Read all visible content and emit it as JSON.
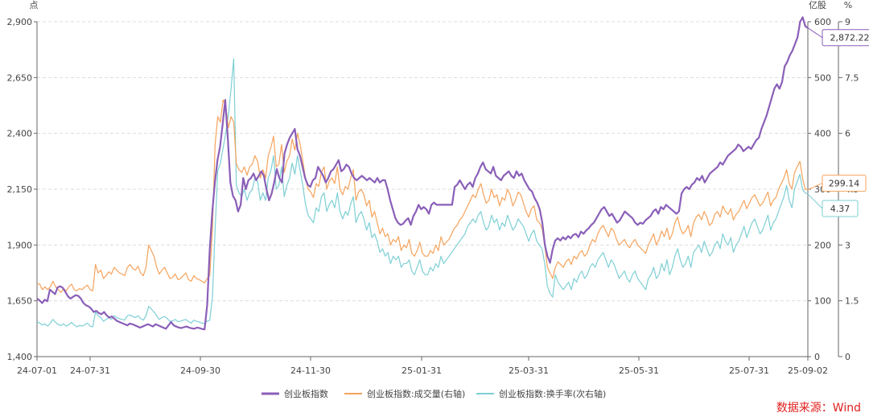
{
  "chart_data": {
    "type": "line",
    "left_unit": "点",
    "right_unit": "亿股",
    "right2_unit": "%",
    "x_labels": [
      "24-07-01",
      "24-07-31",
      "24-09-30",
      "24-11-30",
      "25-01-31",
      "25-03-31",
      "25-05-31",
      "25-07-31",
      "25-09-02"
    ],
    "y_left": {
      "min": 1400,
      "max": 2900,
      "ticks": [
        1400,
        1650,
        1900,
        2150,
        2400,
        2650,
        2900
      ],
      "tick_labels": [
        "1,400",
        "1,650",
        "1,900",
        "2,150",
        "2,400",
        "2,650",
        "2,900"
      ]
    },
    "y_right": {
      "min": 0,
      "max": 600,
      "ticks": [
        0,
        100,
        200,
        300,
        400,
        500,
        600
      ],
      "tick_labels": [
        "0",
        "100",
        "200",
        "300",
        "400",
        "500",
        "600"
      ]
    },
    "y_right2": {
      "min": 0,
      "max": 9,
      "ticks": [
        0,
        1.5,
        3,
        4.5,
        6,
        7.5,
        9
      ],
      "tick_labels": [
        "0",
        "1.5",
        "3",
        "4.5",
        "6",
        "7.5",
        "9"
      ]
    },
    "series": [
      {
        "name": "创业板指数",
        "axis": "left",
        "color": "#8a5fb8",
        "last_label": "2,872.22",
        "values": [
          1660,
          1652,
          1640,
          1655,
          1648,
          1700,
          1690,
          1680,
          1710,
          1715,
          1708,
          1690,
          1670,
          1660,
          1668,
          1675,
          1672,
          1660,
          1640,
          1630,
          1625,
          1615,
          1600,
          1605,
          1595,
          1590,
          1600,
          1585,
          1575,
          1580,
          1570,
          1560,
          1555,
          1550,
          1545,
          1540,
          1548,
          1545,
          1540,
          1535,
          1530,
          1535,
          1540,
          1545,
          1540,
          1535,
          1545,
          1540,
          1535,
          1530,
          1525,
          1540,
          1555,
          1540,
          1535,
          1530,
          1528,
          1532,
          1535,
          1530,
          1527,
          1525,
          1530,
          1528,
          1524,
          1522,
          1630,
          1880,
          2050,
          2180,
          2280,
          2340,
          2440,
          2550,
          2380,
          2180,
          2120,
          2100,
          2050,
          2080,
          2200,
          2150,
          2190,
          2200,
          2220,
          2190,
          2210,
          2230,
          2210,
          2150,
          2100,
          2130,
          2180,
          2240,
          2200,
          2180,
          2310,
          2350,
          2380,
          2400,
          2420,
          2330,
          2300,
          2250,
          2200,
          2170,
          2160,
          2190,
          2200,
          2250,
          2230,
          2210,
          2180,
          2200,
          2230,
          2240,
          2260,
          2280,
          2230,
          2240,
          2260,
          2250,
          2220,
          2200,
          2190,
          2200,
          2210,
          2200,
          2190,
          2200,
          2190,
          2180,
          2200,
          2180,
          2190,
          2190,
          2150,
          2100,
          2060,
          2020,
          2000,
          1990,
          1995,
          2010,
          2020,
          1990,
          2030,
          2050,
          2080,
          2060,
          2070,
          2060,
          2040,
          2080,
          2090,
          2080,
          2080,
          2080,
          2080,
          2080,
          2080,
          2080,
          2160,
          2170,
          2190,
          2170,
          2150,
          2170,
          2180,
          2160,
          2200,
          2220,
          2250,
          2270,
          2240,
          2230,
          2220,
          2250,
          2210,
          2200,
          2190,
          2210,
          2220,
          2230,
          2210,
          2200,
          2230,
          2210,
          2220,
          2190,
          2170,
          2150,
          2140,
          2110,
          2090,
          2060,
          2000,
          1900,
          1850,
          1820,
          1880,
          1920,
          1930,
          1920,
          1935,
          1925,
          1940,
          1930,
          1945,
          1950,
          1935,
          1960,
          1950,
          1965,
          1975,
          1990,
          2000,
          2020,
          2040,
          2060,
          2070,
          2050,
          2030,
          2040,
          2020,
          2000,
          2010,
          2030,
          2050,
          2040,
          2030,
          2020,
          2000,
          1990,
          2000,
          1995,
          2010,
          2020,
          2030,
          2050,
          2060,
          2040,
          2070,
          2060,
          2080,
          2070,
          2060,
          2050,
          2040,
          2050,
          2130,
          2150,
          2160,
          2150,
          2170,
          2180,
          2200,
          2190,
          2210,
          2180,
          2200,
          2220,
          2230,
          2240,
          2250,
          2270,
          2260,
          2280,
          2300,
          2310,
          2320,
          2330,
          2350,
          2340,
          2320,
          2330,
          2340,
          2330,
          2350,
          2370,
          2380,
          2420,
          2450,
          2480,
          2520,
          2560,
          2600,
          2620,
          2600,
          2630,
          2700,
          2720,
          2750,
          2770,
          2800,
          2830,
          2900,
          2920,
          2880,
          2872.22
        ]
      },
      {
        "name": "创业板指数:成交量(右轴)",
        "axis": "right",
        "color": "#f5a35c",
        "last_label": "299.14",
        "values": [
          130,
          130,
          120,
          125,
          120,
          125,
          135,
          125,
          120,
          115,
          122,
          118,
          125,
          130,
          120,
          118,
          122,
          120,
          125,
          128,
          120,
          118,
          165,
          150,
          155,
          140,
          145,
          152,
          148,
          160,
          155,
          150,
          148,
          145,
          160,
          165,
          158,
          155,
          162,
          150,
          145,
          160,
          200,
          190,
          180,
          160,
          148,
          155,
          160,
          150,
          140,
          142,
          148,
          138,
          140,
          145,
          150,
          138,
          135,
          145,
          140,
          138,
          135,
          132,
          140,
          145,
          230,
          380,
          430,
          420,
          460,
          450,
          410,
          430,
          420,
          345,
          335,
          330,
          340,
          325,
          340,
          345,
          360,
          350,
          320,
          335,
          320,
          360,
          375,
          395,
          340,
          345,
          380,
          330,
          350,
          360,
          390,
          370,
          400,
          380,
          350,
          320,
          300,
          295,
          285,
          310,
          305,
          330,
          340,
          300,
          315,
          320,
          310,
          340,
          300,
          290,
          305,
          300,
          320,
          335,
          280,
          295,
          300,
          290,
          270,
          280,
          250,
          260,
          240,
          220,
          230,
          215,
          220,
          200,
          210,
          205,
          215,
          190,
          200,
          195,
          210,
          185,
          180,
          190,
          205,
          185,
          180,
          180,
          190,
          185,
          200,
          190,
          215,
          200,
          205,
          210,
          220,
          230,
          235,
          245,
          250,
          260,
          270,
          280,
          290,
          285,
          300,
          310,
          290,
          275,
          280,
          300,
          285,
          290,
          270,
          285,
          280,
          300,
          290,
          270,
          280,
          295,
          290,
          275,
          260,
          250,
          265,
          270,
          245,
          240,
          230,
          200,
          160,
          150,
          140,
          160,
          170,
          165,
          160,
          170,
          175,
          165,
          180,
          175,
          185,
          190,
          180,
          185,
          200,
          210,
          205,
          220,
          230,
          235,
          225,
          215,
          230,
          225,
          210,
          200,
          205,
          210,
          200,
          195,
          205,
          210,
          200,
          195,
          190,
          185,
          200,
          210,
          220,
          200,
          210,
          225,
          215,
          230,
          210,
          220,
          240,
          250,
          230,
          220,
          225,
          235,
          215,
          240,
          250,
          255,
          245,
          260,
          250,
          235,
          240,
          255,
          260,
          250,
          270,
          260,
          255,
          265,
          245,
          255,
          260,
          270,
          280,
          265,
          275,
          285,
          290,
          280,
          270,
          275,
          285,
          295,
          270,
          280,
          285,
          300,
          310,
          320,
          335,
          310,
          300,
          330,
          340,
          350,
          320,
          300,
          299.14
        ]
      },
      {
        "name": "创业板指数:换手率(次右轴)",
        "axis": "right2",
        "color": "#7ecfd4",
        "last_label": "4.37",
        "values": [
          0.95,
          0.9,
          0.85,
          0.88,
          0.82,
          0.9,
          1.0,
          0.92,
          0.86,
          0.84,
          0.88,
          0.82,
          0.86,
          0.92,
          0.85,
          0.8,
          0.84,
          0.82,
          0.86,
          0.9,
          0.82,
          0.8,
          1.2,
          1.1,
          1.05,
          0.95,
          1.0,
          1.05,
          1.0,
          1.1,
          1.05,
          1.02,
          1.0,
          0.98,
          1.1,
          1.12,
          1.08,
          1.05,
          1.1,
          1.02,
          0.98,
          1.1,
          1.35,
          1.28,
          1.2,
          1.1,
          1.0,
          1.05,
          1.08,
          1.02,
          0.95,
          0.96,
          1.0,
          0.94,
          0.95,
          0.98,
          1.0,
          0.94,
          0.9,
          0.98,
          0.95,
          0.93,
          0.9,
          0.89,
          0.95,
          0.98,
          1.6,
          3.4,
          5.0,
          5.2,
          5.6,
          6.0,
          6.5,
          7.2,
          8.0,
          4.6,
          4.4,
          4.3,
          4.5,
          4.2,
          4.4,
          4.5,
          4.8,
          4.7,
          4.2,
          4.4,
          4.2,
          4.8,
          5.0,
          5.4,
          4.5,
          4.6,
          5.1,
          4.3,
          4.6,
          4.8,
          5.2,
          4.9,
          5.4,
          5.0,
          4.6,
          4.1,
          3.8,
          3.7,
          3.6,
          4.0,
          3.9,
          4.3,
          4.4,
          3.9,
          4.1,
          4.2,
          4.0,
          4.4,
          3.9,
          3.7,
          3.9,
          3.8,
          4.1,
          4.3,
          3.6,
          3.8,
          3.9,
          3.7,
          3.4,
          3.6,
          3.2,
          3.3,
          3.1,
          2.8,
          2.9,
          2.7,
          2.8,
          2.5,
          2.7,
          2.6,
          2.7,
          2.4,
          2.5,
          2.5,
          2.6,
          2.3,
          2.2,
          2.4,
          2.6,
          2.3,
          2.2,
          2.2,
          2.4,
          2.3,
          2.5,
          2.4,
          2.7,
          2.5,
          2.6,
          2.7,
          2.8,
          2.9,
          3.0,
          3.1,
          3.2,
          3.3,
          3.5,
          3.6,
          3.7,
          3.6,
          3.8,
          3.9,
          3.6,
          3.4,
          3.5,
          3.8,
          3.6,
          3.7,
          3.4,
          3.6,
          3.5,
          3.8,
          3.6,
          3.4,
          3.5,
          3.7,
          3.6,
          3.5,
          3.3,
          3.1,
          3.3,
          3.4,
          3.1,
          3.0,
          2.9,
          2.5,
          1.9,
          1.7,
          1.6,
          2.2,
          2.0,
          1.9,
          1.8,
          1.9,
          2.0,
          1.8,
          2.1,
          2.0,
          2.2,
          2.3,
          2.1,
          2.2,
          2.4,
          2.5,
          2.4,
          2.6,
          2.7,
          2.8,
          2.6,
          2.4,
          2.6,
          2.5,
          2.3,
          2.1,
          2.2,
          2.3,
          2.1,
          2.0,
          2.2,
          2.3,
          2.1,
          2.0,
          1.9,
          1.8,
          2.1,
          2.2,
          2.4,
          2.1,
          2.2,
          2.5,
          2.3,
          2.6,
          2.2,
          2.4,
          2.7,
          2.9,
          2.6,
          2.4,
          2.5,
          2.7,
          2.4,
          2.8,
          2.9,
          3.0,
          2.8,
          3.1,
          2.9,
          2.7,
          2.8,
          3.0,
          3.1,
          2.9,
          3.3,
          3.1,
          3.0,
          3.2,
          2.8,
          3.0,
          3.1,
          3.3,
          3.5,
          3.2,
          3.4,
          3.6,
          3.7,
          3.5,
          3.3,
          3.4,
          3.6,
          3.8,
          3.4,
          3.6,
          3.7,
          3.9,
          4.1,
          4.3,
          4.6,
          4.2,
          4.0,
          4.5,
          4.7,
          4.9,
          4.5,
          4.4,
          4.37
        ]
      }
    ]
  },
  "source_label": "数据来源：Wind"
}
